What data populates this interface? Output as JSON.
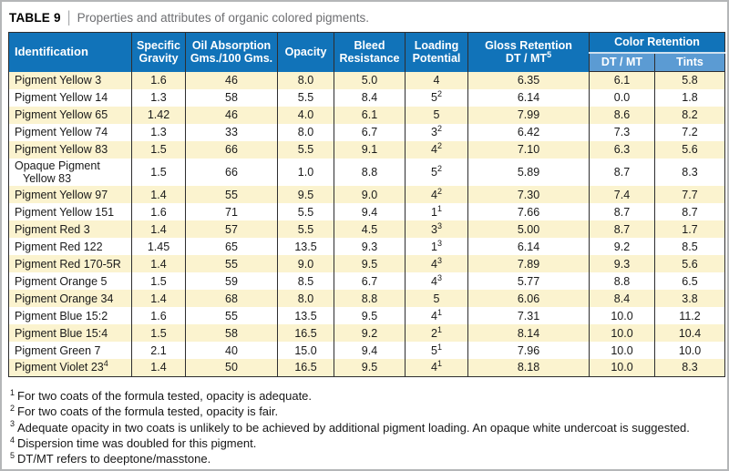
{
  "title": {
    "label": "TABLE 9",
    "separator": "|",
    "description": "Properties and attributes of organic colored pigments."
  },
  "colors": {
    "header_blue": "#1173b9",
    "subheader_blue": "#5b9bd3",
    "row_stripe_cream": "#fbf3cf",
    "row_white": "#ffffff",
    "grid_line": "#2e2e30",
    "title_gray": "#6d6e71"
  },
  "table": {
    "headers": {
      "identification": "Identification",
      "specific_gravity": "Specific Gravity",
      "oil_absorption": "Oil Absorption Gms./100 Gms.",
      "opacity": "Opacity",
      "bleed_resistance": "Bleed Resistance",
      "loading_potential": "Loading Potential",
      "gloss_retention_line1": "Gloss Retention",
      "gloss_retention_line2": "DT / MT",
      "gloss_retention_sup": "5",
      "color_retention": "Color Retention",
      "dt_mt": "DT / MT",
      "tints": "Tints"
    },
    "rows": [
      {
        "name_lines": [
          "Pigment Yellow 3"
        ],
        "name_sup": "",
        "specific_gravity": "1.6",
        "oil_absorption": "46",
        "opacity": "8.0",
        "bleed": "5.0",
        "loading": "4",
        "loading_sup": "",
        "gloss": "6.35",
        "dt_mt": "6.1",
        "tints": "5.8"
      },
      {
        "name_lines": [
          "Pigment Yellow 14"
        ],
        "name_sup": "",
        "specific_gravity": "1.3",
        "oil_absorption": "58",
        "opacity": "5.5",
        "bleed": "8.4",
        "loading": "5",
        "loading_sup": "2",
        "gloss": "6.14",
        "dt_mt": "0.0",
        "tints": "1.8"
      },
      {
        "name_lines": [
          "Pigment Yellow 65"
        ],
        "name_sup": "",
        "specific_gravity": "1.42",
        "oil_absorption": "46",
        "opacity": "4.0",
        "bleed": "6.1",
        "loading": "5",
        "loading_sup": "",
        "gloss": "7.99",
        "dt_mt": "8.6",
        "tints": "8.2"
      },
      {
        "name_lines": [
          "Pigment Yellow 74"
        ],
        "name_sup": "",
        "specific_gravity": "1.3",
        "oil_absorption": "33",
        "opacity": "8.0",
        "bleed": "6.7",
        "loading": "3",
        "loading_sup": "2",
        "gloss": "6.42",
        "dt_mt": "7.3",
        "tints": "7.2"
      },
      {
        "name_lines": [
          "Pigment Yellow 83"
        ],
        "name_sup": "",
        "specific_gravity": "1.5",
        "oil_absorption": "66",
        "opacity": "5.5",
        "bleed": "9.1",
        "loading": "4",
        "loading_sup": "2",
        "gloss": "7.10",
        "dt_mt": "6.3",
        "tints": "5.6"
      },
      {
        "name_lines": [
          "Opaque Pigment",
          "Yellow 83"
        ],
        "name_sup": "",
        "specific_gravity": "1.5",
        "oil_absorption": "66",
        "opacity": "1.0",
        "bleed": "8.8",
        "loading": "5",
        "loading_sup": "2",
        "gloss": "5.89",
        "dt_mt": "8.7",
        "tints": "8.3"
      },
      {
        "name_lines": [
          "Pigment Yellow 97"
        ],
        "name_sup": "",
        "specific_gravity": "1.4",
        "oil_absorption": "55",
        "opacity": "9.5",
        "bleed": "9.0",
        "loading": "4",
        "loading_sup": "2",
        "gloss": "7.30",
        "dt_mt": "7.4",
        "tints": "7.7"
      },
      {
        "name_lines": [
          "Pigment Yellow 151"
        ],
        "name_sup": "",
        "specific_gravity": "1.6",
        "oil_absorption": "71",
        "opacity": "5.5",
        "bleed": "9.4",
        "loading": "1",
        "loading_sup": "1",
        "gloss": "7.66",
        "dt_mt": "8.7",
        "tints": "8.7"
      },
      {
        "name_lines": [
          "Pigment Red 3"
        ],
        "name_sup": "",
        "specific_gravity": "1.4",
        "oil_absorption": "57",
        "opacity": "5.5",
        "bleed": "4.5",
        "loading": "3",
        "loading_sup": "3",
        "gloss": "5.00",
        "dt_mt": "8.7",
        "tints": "1.7"
      },
      {
        "name_lines": [
          "Pigment Red 122"
        ],
        "name_sup": "",
        "specific_gravity": "1.45",
        "oil_absorption": "65",
        "opacity": "13.5",
        "bleed": "9.3",
        "loading": "1",
        "loading_sup": "3",
        "gloss": "6.14",
        "dt_mt": "9.2",
        "tints": "8.5"
      },
      {
        "name_lines": [
          "Pigment Red 170-5R"
        ],
        "name_sup": "",
        "specific_gravity": "1.4",
        "oil_absorption": "55",
        "opacity": "9.0",
        "bleed": "9.5",
        "loading": "4",
        "loading_sup": "3",
        "gloss": "7.89",
        "dt_mt": "9.3",
        "tints": "5.6"
      },
      {
        "name_lines": [
          "Pigment Orange 5"
        ],
        "name_sup": "",
        "specific_gravity": "1.5",
        "oil_absorption": "59",
        "opacity": "8.5",
        "bleed": "6.7",
        "loading": "4",
        "loading_sup": "3",
        "gloss": "5.77",
        "dt_mt": "8.8",
        "tints": "6.5"
      },
      {
        "name_lines": [
          "Pigment Orange 34"
        ],
        "name_sup": "",
        "specific_gravity": "1.4",
        "oil_absorption": "68",
        "opacity": "8.0",
        "bleed": "8.8",
        "loading": "5",
        "loading_sup": "",
        "gloss": "6.06",
        "dt_mt": "8.4",
        "tints": "3.8"
      },
      {
        "name_lines": [
          "Pigment Blue 15:2"
        ],
        "name_sup": "",
        "specific_gravity": "1.6",
        "oil_absorption": "55",
        "opacity": "13.5",
        "bleed": "9.5",
        "loading": "4",
        "loading_sup": "1",
        "gloss": "7.31",
        "dt_mt": "10.0",
        "tints": "11.2"
      },
      {
        "name_lines": [
          "Pigment Blue 15:4"
        ],
        "name_sup": "",
        "specific_gravity": "1.5",
        "oil_absorption": "58",
        "opacity": "16.5",
        "bleed": "9.2",
        "loading": "2",
        "loading_sup": "1",
        "gloss": "8.14",
        "dt_mt": "10.0",
        "tints": "10.4"
      },
      {
        "name_lines": [
          "Pigment Green 7"
        ],
        "name_sup": "",
        "specific_gravity": "2.1",
        "oil_absorption": "40",
        "opacity": "15.0",
        "bleed": "9.4",
        "loading": "5",
        "loading_sup": "1",
        "gloss": "7.96",
        "dt_mt": "10.0",
        "tints": "10.0"
      },
      {
        "name_lines": [
          "Pigment Violet 23"
        ],
        "name_sup": "4",
        "specific_gravity": "1.4",
        "oil_absorption": "50",
        "opacity": "16.5",
        "bleed": "9.5",
        "loading": "4",
        "loading_sup": "1",
        "gloss": "8.18",
        "dt_mt": "10.0",
        "tints": "8.3"
      }
    ]
  },
  "footnotes": [
    {
      "sup": "1",
      "text": "For two coats of the formula tested, opacity is adequate."
    },
    {
      "sup": "2",
      "text": "For two coats of the formula tested, opacity is fair."
    },
    {
      "sup": "3",
      "text": "Adequate opacity in two coats is unlikely to be achieved by additional pigment loading. An opaque white undercoat is suggested."
    },
    {
      "sup": "4",
      "text": "Dispersion time was doubled for this pigment."
    },
    {
      "sup": "5",
      "text": "DT/MT refers to deeptone/masstone."
    }
  ]
}
